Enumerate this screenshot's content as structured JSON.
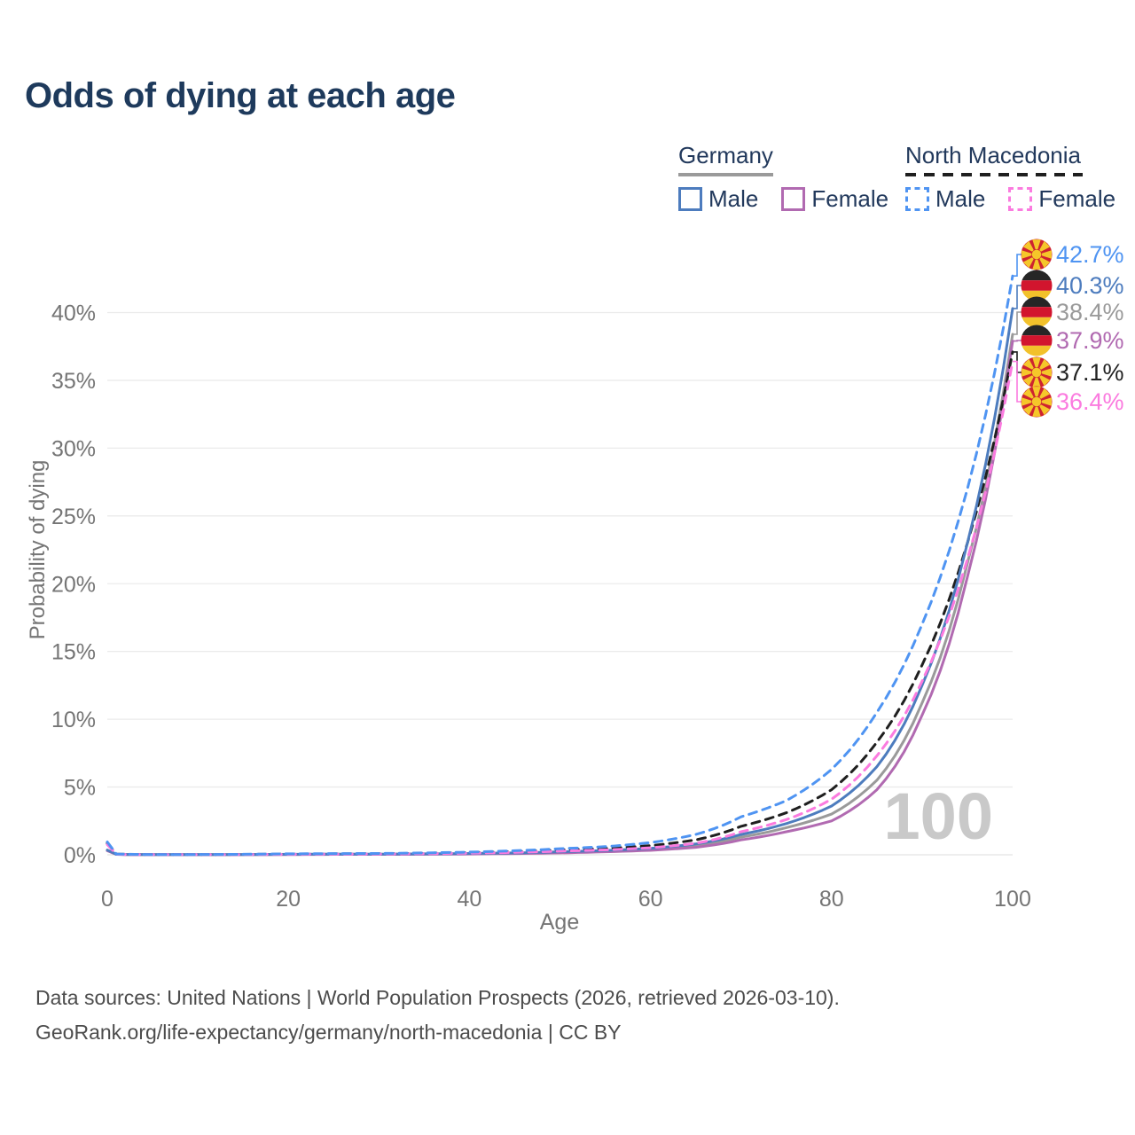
{
  "title": "Odds of dying at each age",
  "watermark": "100",
  "footer": {
    "line1": "Data sources: United Nations | World Population Prospects (2026, retrieved 2026-03-10).",
    "line2": "GeoRank.org/life-expectancy/germany/north-macedonia | CC BY"
  },
  "legend": {
    "groups": [
      {
        "country": "Germany",
        "line_style": "solid",
        "line_color": "#9a9a9a",
        "underline_width": 107,
        "items": [
          {
            "label": "Male",
            "color": "#4d7cbe",
            "dashed": false
          },
          {
            "label": "Female",
            "color": "#b16ab1",
            "dashed": false
          }
        ]
      },
      {
        "country": "North Macedonia",
        "line_style": "dashed",
        "line_color": "#1f1f1f",
        "underline_width": 200,
        "items": [
          {
            "label": "Male",
            "color": "#4f94f2",
            "dashed": true
          },
          {
            "label": "Female",
            "color": "#fb7bdf",
            "dashed": true
          }
        ]
      }
    ]
  },
  "chart_data": {
    "type": "line",
    "title": "Odds of dying at each age",
    "xlabel": "Age",
    "ylabel": "Probability of dying",
    "x_ticks": [
      0,
      20,
      40,
      60,
      80,
      100
    ],
    "y_tick_labels": [
      "0%",
      "5%",
      "10%",
      "15%",
      "20%",
      "25%",
      "30%",
      "35%",
      "40%"
    ],
    "y_tick_values": [
      0,
      5,
      10,
      15,
      20,
      25,
      30,
      35,
      40
    ],
    "xlim": [
      0,
      100
    ],
    "ylim_percent": [
      0,
      44
    ],
    "grid": "horizontal only",
    "legend_position": "top-right",
    "ages": [
      0,
      1,
      5,
      10,
      15,
      20,
      25,
      30,
      35,
      40,
      45,
      50,
      55,
      60,
      65,
      70,
      75,
      80,
      85,
      90,
      95,
      100
    ],
    "series": [
      {
        "name": "North Macedonia Male",
        "country": "North Macedonia",
        "sex": "Male",
        "flag": "mk",
        "dashed": true,
        "color": "#4f94f2",
        "end_label": "42.7%",
        "end_value": 42.7,
        "values": [
          0.95,
          0.06,
          0.02,
          0.02,
          0.04,
          0.07,
          0.09,
          0.1,
          0.14,
          0.2,
          0.3,
          0.45,
          0.6,
          0.9,
          1.5,
          2.8,
          4.0,
          6.3,
          10.5,
          17.0,
          27.0,
          42.7
        ]
      },
      {
        "name": "Germany Male",
        "country": "Germany",
        "sex": "Male",
        "flag": "de",
        "dashed": false,
        "color": "#4d7cbe",
        "end_label": "40.3%",
        "end_value": 40.3,
        "values": [
          0.35,
          0.04,
          0.01,
          0.01,
          0.02,
          0.04,
          0.05,
          0.05,
          0.07,
          0.1,
          0.14,
          0.22,
          0.32,
          0.48,
          0.8,
          1.5,
          2.3,
          3.6,
          6.5,
          12.5,
          23.0,
          40.3
        ]
      },
      {
        "name": "Germany Both sexes",
        "country": "Germany",
        "sex": "All",
        "flag": "de",
        "dashed": false,
        "color": "#9a9a9a",
        "end_label": "38.4%",
        "end_value": 38.4,
        "values": [
          0.32,
          0.035,
          0.01,
          0.01,
          0.015,
          0.03,
          0.04,
          0.04,
          0.05,
          0.08,
          0.12,
          0.18,
          0.27,
          0.4,
          0.68,
          1.3,
          2.0,
          3.0,
          5.5,
          11.2,
          21.5,
          38.4
        ]
      },
      {
        "name": "Germany Female",
        "country": "Germany",
        "sex": "Female",
        "flag": "de",
        "dashed": false,
        "color": "#b16ab1",
        "end_label": "37.9%",
        "end_value": 37.9,
        "values": [
          0.3,
          0.03,
          0.008,
          0.008,
          0.01,
          0.02,
          0.03,
          0.03,
          0.04,
          0.06,
          0.09,
          0.14,
          0.22,
          0.33,
          0.55,
          1.1,
          1.7,
          2.5,
          4.8,
          10.3,
          20.5,
          37.9
        ]
      },
      {
        "name": "North Macedonia Both sexes",
        "country": "North Macedonia",
        "sex": "All",
        "flag": "mk",
        "dashed": true,
        "color": "#1f1f1f",
        "end_label": "37.1%",
        "end_value": 37.1,
        "values": [
          0.85,
          0.05,
          0.015,
          0.015,
          0.03,
          0.05,
          0.07,
          0.08,
          0.11,
          0.16,
          0.24,
          0.36,
          0.46,
          0.68,
          1.1,
          2.1,
          3.1,
          4.8,
          8.3,
          14.0,
          23.0,
          37.1
        ]
      },
      {
        "name": "North Macedonia Female",
        "country": "North Macedonia",
        "sex": "Female",
        "flag": "mk",
        "dashed": true,
        "color": "#fb7bdf",
        "end_label": "36.4%",
        "end_value": 36.4,
        "values": [
          0.75,
          0.04,
          0.01,
          0.01,
          0.02,
          0.04,
          0.05,
          0.06,
          0.08,
          0.12,
          0.18,
          0.27,
          0.36,
          0.52,
          0.85,
          1.7,
          2.6,
          4.1,
          7.3,
          12.8,
          21.8,
          36.4
        ]
      }
    ]
  }
}
